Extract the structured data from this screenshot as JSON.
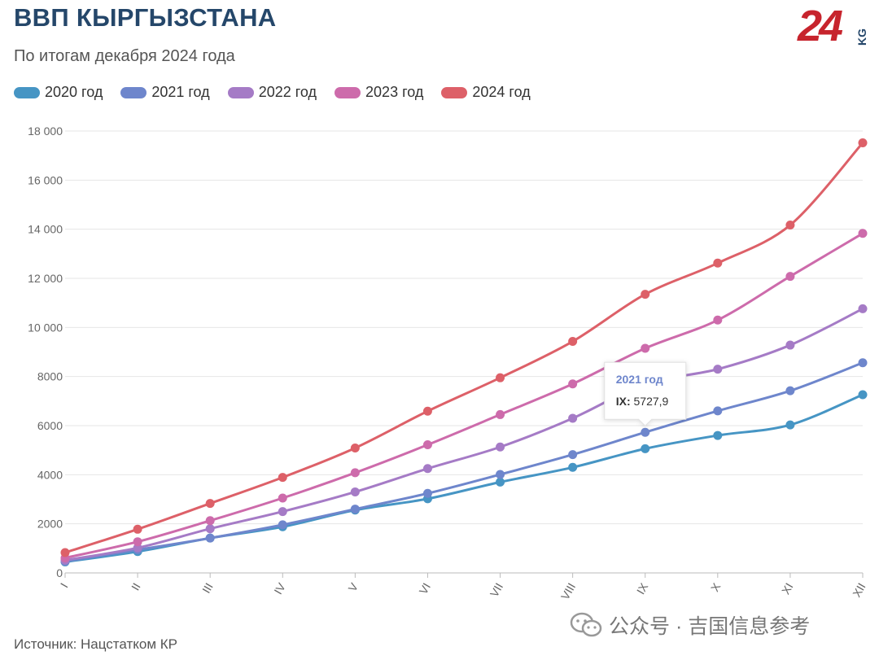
{
  "header": {
    "title": "ВВП КЫРГЫЗСТАНА",
    "subtitle": "По итогам декабря 2024 года",
    "logo_text": "24",
    "logo_suffix": "KG"
  },
  "colors": {
    "title": "#25476a",
    "grid": "#e6e6e6",
    "axis": "#bbbbbb"
  },
  "chart_data": {
    "type": "line",
    "title": "ВВП КЫРГЫЗСТАНА",
    "subtitle": "По итогам декабря 2024 года",
    "xlabel": "",
    "ylabel": "",
    "ylim": [
      0,
      18000
    ],
    "yticks": [
      0,
      2000,
      4000,
      6000,
      8000,
      10000,
      12000,
      14000,
      16000,
      18000
    ],
    "ytick_labels": [
      "0",
      "2000",
      "4000",
      "6000",
      "8000",
      "10 000",
      "12 000",
      "14 000",
      "16 000",
      "18 000"
    ],
    "grid": true,
    "legend_position": "top-left",
    "categories": [
      "I",
      "II",
      "III",
      "IV",
      "V",
      "VI",
      "VII",
      "VIII",
      "IX",
      "X",
      "XI",
      "XII"
    ],
    "series": [
      {
        "name": "2020 год",
        "color": "#4695c4",
        "values": [
          450,
          870,
          1420,
          1880,
          2560,
          3020,
          3700,
          4300,
          5060,
          5600,
          6030,
          7260
        ]
      },
      {
        "name": "2021 год",
        "color": "#6e86cc",
        "values": [
          470,
          940,
          1420,
          1960,
          2600,
          3240,
          4010,
          4820,
          5727.9,
          6600,
          7420,
          8560
        ]
      },
      {
        "name": "2022 год",
        "color": "#a57bc6",
        "values": [
          520,
          1020,
          1800,
          2500,
          3300,
          4250,
          5130,
          6300,
          7700,
          8300,
          9280,
          10760
        ]
      },
      {
        "name": "2023 год",
        "color": "#cd6bab",
        "values": [
          610,
          1270,
          2130,
          3050,
          4080,
          5220,
          6450,
          7700,
          9150,
          10300,
          12080,
          13830
        ]
      },
      {
        "name": "2024 год",
        "color": "#dd6068",
        "values": [
          830,
          1780,
          2830,
          3890,
          5090,
          6590,
          7950,
          9430,
          11350,
          12620,
          14170,
          17520
        ]
      }
    ],
    "tooltip": {
      "series": "2021 год",
      "category": "IX",
      "label": "IX:",
      "value_text": "5727,9"
    }
  },
  "footer": {
    "source": "Источник: Нацстатком КР",
    "watermark": "公众号 · 吉国信息参考"
  }
}
